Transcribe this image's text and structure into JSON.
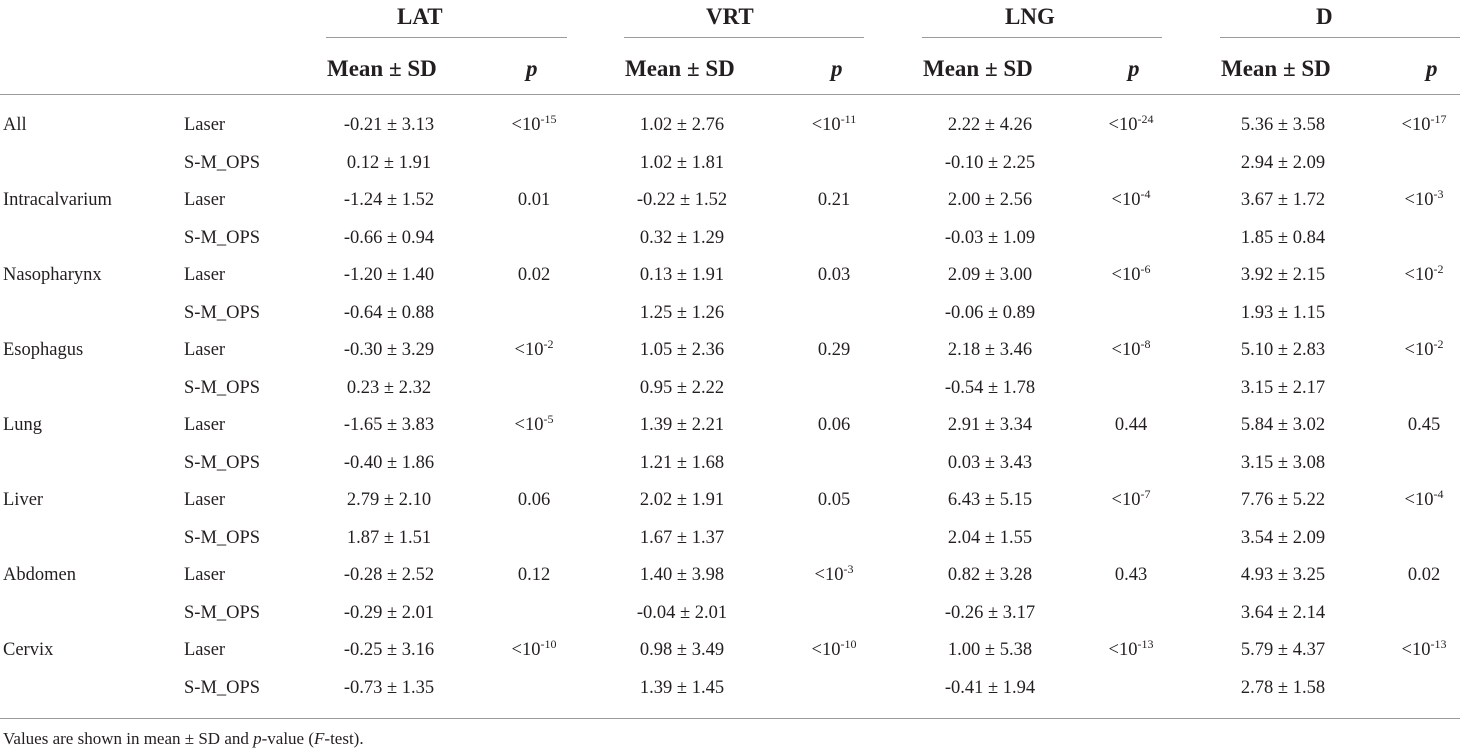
{
  "header": {
    "groups": [
      {
        "name": "LAT",
        "mean_label": "Mean ± SD",
        "p_label": "p"
      },
      {
        "name": "VRT",
        "mean_label": "Mean ± SD",
        "p_label": "p"
      },
      {
        "name": "LNG",
        "mean_label": "Mean ± SD",
        "p_label": "p"
      },
      {
        "name": "D",
        "mean_label": "Mean ± SD",
        "p_label": "p"
      }
    ]
  },
  "rows": [
    {
      "site": "All",
      "method": "Laser",
      "cells": [
        {
          "v": "-0.21  ±  3.13",
          "p": "<10",
          "pe": "-15"
        },
        {
          "v": "1.02 ± 2.76",
          "p": "<10",
          "pe": "-11"
        },
        {
          "v": "2.22 ± 4.26",
          "p": "<10",
          "pe": "-24"
        },
        {
          "v": "5.36 ± 3.58",
          "p": "<10",
          "pe": "-17"
        }
      ]
    },
    {
      "site": "",
      "method": "S-M_OPS",
      "cells": [
        {
          "v": "0.12  ±  1.91",
          "p": "",
          "pe": ""
        },
        {
          "v": "1.02 ± 1.81",
          "p": "",
          "pe": ""
        },
        {
          "v": "-0.10 ± 2.25",
          "p": "",
          "pe": ""
        },
        {
          "v": "2.94 ± 2.09",
          "p": "",
          "pe": ""
        }
      ]
    },
    {
      "site": "Intracalvarium",
      "method": "Laser",
      "cells": [
        {
          "v": "-1.24 ± 1.52",
          "p": "0.01",
          "pe": ""
        },
        {
          "v": "-0.22 ± 1.52",
          "p": "0.21",
          "pe": ""
        },
        {
          "v": "2.00 ± 2.56",
          "p": "<10",
          "pe": "-4"
        },
        {
          "v": "3.67 ± 1.72",
          "p": "<10",
          "pe": "-3"
        }
      ]
    },
    {
      "site": "",
      "method": "S-M_OPS",
      "cells": [
        {
          "v": "-0.66 ± 0.94",
          "p": "",
          "pe": ""
        },
        {
          "v": "0.32 ± 1.29",
          "p": "",
          "pe": ""
        },
        {
          "v": "-0.03 ± 1.09",
          "p": "",
          "pe": ""
        },
        {
          "v": "1.85 ± 0.84",
          "p": "",
          "pe": ""
        }
      ]
    },
    {
      "site": "Nasopharynx",
      "method": "Laser",
      "cells": [
        {
          "v": "-1.20 ± 1.40",
          "p": "0.02",
          "pe": ""
        },
        {
          "v": "0.13 ± 1.91",
          "p": "0.03",
          "pe": ""
        },
        {
          "v": "2.09 ± 3.00",
          "p": "<10",
          "pe": "-6"
        },
        {
          "v": "3.92 ± 2.15",
          "p": "<10",
          "pe": "-2"
        }
      ]
    },
    {
      "site": "",
      "method": "S-M_OPS",
      "cells": [
        {
          "v": "-0.64 ± 0.88",
          "p": "",
          "pe": ""
        },
        {
          "v": "1.25 ± 1.26",
          "p": "",
          "pe": ""
        },
        {
          "v": "-0.06 ± 0.89",
          "p": "",
          "pe": ""
        },
        {
          "v": "1.93 ± 1.15",
          "p": "",
          "pe": ""
        }
      ]
    },
    {
      "site": "Esophagus",
      "method": "Laser",
      "cells": [
        {
          "v": "-0.30 ± 3.29",
          "p": "<10",
          "pe": "-2"
        },
        {
          "v": "1.05 ± 2.36",
          "p": "0.29",
          "pe": ""
        },
        {
          "v": "2.18 ± 3.46",
          "p": "<10",
          "pe": "-8"
        },
        {
          "v": "5.10 ± 2.83",
          "p": "<10",
          "pe": "-2"
        }
      ]
    },
    {
      "site": "",
      "method": "S-M_OPS",
      "cells": [
        {
          "v": "0.23 ± 2.32",
          "p": "",
          "pe": ""
        },
        {
          "v": "0.95 ± 2.22",
          "p": "",
          "pe": ""
        },
        {
          "v": "-0.54 ± 1.78",
          "p": "",
          "pe": ""
        },
        {
          "v": "3.15 ± 2.17",
          "p": "",
          "pe": ""
        }
      ]
    },
    {
      "site": "Lung",
      "method": "Laser",
      "cells": [
        {
          "v": "-1.65 ± 3.83",
          "p": "<10",
          "pe": "-5"
        },
        {
          "v": "1.39 ± 2.21",
          "p": "0.06",
          "pe": ""
        },
        {
          "v": "2.91 ± 3.34",
          "p": "0.44",
          "pe": ""
        },
        {
          "v": "5.84 ± 3.02",
          "p": "0.45",
          "pe": ""
        }
      ]
    },
    {
      "site": "",
      "method": "S-M_OPS",
      "cells": [
        {
          "v": "-0.40 ± 1.86",
          "p": "",
          "pe": ""
        },
        {
          "v": "1.21 ± 1.68",
          "p": "",
          "pe": ""
        },
        {
          "v": "0.03 ± 3.43",
          "p": "",
          "pe": ""
        },
        {
          "v": "3.15 ± 3.08",
          "p": "",
          "pe": ""
        }
      ]
    },
    {
      "site": "Liver",
      "method": "Laser",
      "cells": [
        {
          "v": "2.79 ± 2.10",
          "p": "0.06",
          "pe": ""
        },
        {
          "v": "2.02 ± 1.91",
          "p": "0.05",
          "pe": ""
        },
        {
          "v": "6.43 ± 5.15",
          "p": "<10",
          "pe": "-7"
        },
        {
          "v": "7.76 ± 5.22",
          "p": "<10",
          "pe": "-4"
        }
      ]
    },
    {
      "site": "",
      "method": "S-M_OPS",
      "cells": [
        {
          "v": "1.87 ± 1.51",
          "p": "",
          "pe": ""
        },
        {
          "v": "1.67 ± 1.37",
          "p": "",
          "pe": ""
        },
        {
          "v": "2.04 ± 1.55",
          "p": "",
          "pe": ""
        },
        {
          "v": "3.54 ± 2.09",
          "p": "",
          "pe": ""
        }
      ]
    },
    {
      "site": "Abdomen",
      "method": "Laser",
      "cells": [
        {
          "v": "-0.28 ± 2.52",
          "p": "0.12",
          "pe": ""
        },
        {
          "v": "1.40 ± 3.98",
          "p": "<10",
          "pe": "-3"
        },
        {
          "v": "0.82 ± 3.28",
          "p": "0.43",
          "pe": ""
        },
        {
          "v": "4.93 ± 3.25",
          "p": "0.02",
          "pe": ""
        }
      ]
    },
    {
      "site": "",
      "method": "S-M_OPS",
      "cells": [
        {
          "v": "-0.29 ± 2.01",
          "p": "",
          "pe": ""
        },
        {
          "v": "-0.04 ± 2.01",
          "p": "",
          "pe": ""
        },
        {
          "v": "-0.26 ± 3.17",
          "p": "",
          "pe": ""
        },
        {
          "v": "3.64 ± 2.14",
          "p": "",
          "pe": ""
        }
      ]
    },
    {
      "site": "Cervix",
      "method": "Laser",
      "cells": [
        {
          "v": "-0.25 ± 3.16",
          "p": "<10",
          "pe": "-10"
        },
        {
          "v": "0.98 ± 3.49",
          "p": "<10",
          "pe": "-10"
        },
        {
          "v": "1.00 ± 5.38",
          "p": "<10",
          "pe": "-13"
        },
        {
          "v": "5.79 ± 4.37",
          "p": "<10",
          "pe": "-13"
        }
      ]
    },
    {
      "site": "",
      "method": "S-M_OPS",
      "cells": [
        {
          "v": "-0.73 ± 1.35",
          "p": "",
          "pe": ""
        },
        {
          "v": "1.39 ± 1.45",
          "p": "",
          "pe": ""
        },
        {
          "v": "-0.41 ± 1.94",
          "p": "",
          "pe": ""
        },
        {
          "v": "2.78 ± 1.58",
          "p": "",
          "pe": ""
        }
      ]
    }
  ],
  "footnote": {
    "t1": "Values are shown in mean  ±  SD and ",
    "t2": "p",
    "t3": "-value (",
    "t4": "F",
    "t5": "-test)."
  }
}
